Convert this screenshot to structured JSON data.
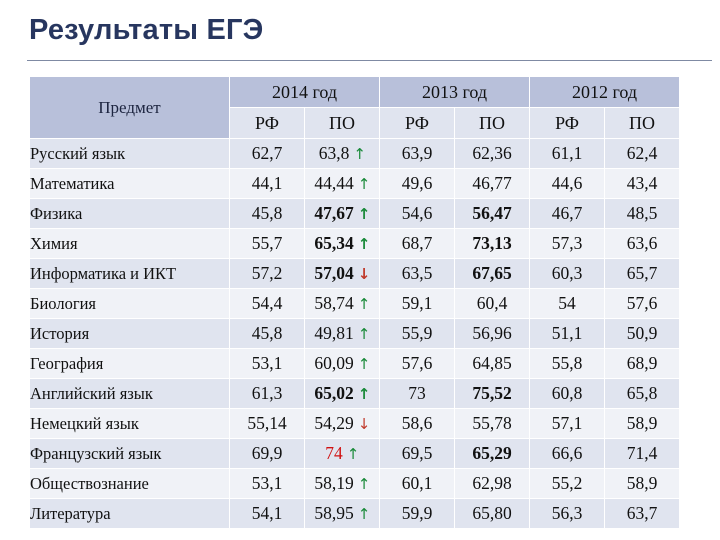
{
  "title": "Результаты ЕГЭ",
  "header": {
    "subject_label": "Предмет",
    "years": [
      "2014 год",
      "2013 год",
      "2012 год"
    ],
    "sub_labels": [
      "РФ",
      "ПО",
      "РФ",
      "ПО",
      "РФ",
      "ПО"
    ]
  },
  "colors": {
    "header": "#b8c0da",
    "row_alt_1": "#e0e4ef",
    "row_alt_2": "#f0f2f7",
    "arrow_up": "#1a8a3a",
    "arrow_down": "#c0392b",
    "title": "#27365f"
  },
  "icons": {
    "up": "arrow-up-icon",
    "down": "arrow-down-icon"
  },
  "rows": [
    {
      "subject": "Русский язык",
      "rf2014": "62,7",
      "po2014": "63,8",
      "trend": "up",
      "rf2013": "63,9",
      "po2013": "62,36",
      "rf2012": "61,1",
      "po2012": "62,4"
    },
    {
      "subject": "Математика",
      "rf2014": "44,1",
      "po2014": "44,44",
      "trend": "up",
      "rf2013": "49,6",
      "po2013": "46,77",
      "rf2012": "44,6",
      "po2012": "43,4"
    },
    {
      "subject": "Физика",
      "rf2014": "45,8",
      "po2014": "47,67",
      "trend": "up",
      "rf2013": "54,6",
      "po2013": "56,47",
      "rf2012": "46,7",
      "po2012": "48,5",
      "bold2014": true,
      "bold2013": true
    },
    {
      "subject": "Химия",
      "rf2014": "55,7",
      "po2014": "65,34",
      "trend": "up",
      "rf2013": "68,7",
      "po2013": "73,13",
      "rf2012": "57,3",
      "po2012": "63,6",
      "bold2014": true,
      "bold2013": true
    },
    {
      "subject": "Информатика и ИКТ",
      "rf2014": "57,2",
      "po2014": "57,04",
      "trend": "down",
      "rf2013": "63,5",
      "po2013": "67,65",
      "rf2012": "60,3",
      "po2012": "65,7",
      "bold2014": true,
      "bold2013": true
    },
    {
      "subject": "Биология",
      "rf2014": "54,4",
      "po2014": "58,74",
      "trend": "up",
      "rf2013": "59,1",
      "po2013": "60,4",
      "rf2012": "54",
      "po2012": "57,6"
    },
    {
      "subject": "История",
      "rf2014": "45,8",
      "po2014": "49,81",
      "trend": "up",
      "rf2013": "55,9",
      "po2013": "56,96",
      "rf2012": "51,1",
      "po2012": "50,9"
    },
    {
      "subject": "География",
      "rf2014": "53,1",
      "po2014": "60,09",
      "trend": "up",
      "rf2013": "57,6",
      "po2013": "64,85",
      "rf2012": "55,8",
      "po2012": "68,9"
    },
    {
      "subject": "Английский язык",
      "rf2014": "61,3",
      "po2014": "65,02",
      "trend": "up",
      "rf2013": "73",
      "po2013": "75,52",
      "rf2012": "60,8",
      "po2012": "65,8",
      "bold2014": true,
      "bold2013": true
    },
    {
      "subject": "Немецкий язык",
      "rf2014": "55,14",
      "po2014": "54,29",
      "trend": "down",
      "rf2013": "58,6",
      "po2013": "55,78",
      "rf2012": "57,1",
      "po2012": "58,9"
    },
    {
      "subject": "Французский язык",
      "rf2014": "69,9",
      "po2014": "74",
      "trend": "up",
      "rf2013": "69,5",
      "po2013": "65,29",
      "rf2012": "66,6",
      "po2012": "71,4",
      "red2014": true,
      "bold2013": true
    },
    {
      "subject": "Обществознание",
      "rf2014": "53,1",
      "po2014": "58,19",
      "trend": "up",
      "rf2013": "60,1",
      "po2013": "62,98",
      "rf2012": "55,2",
      "po2012": "58,9"
    },
    {
      "subject": "Литература",
      "rf2014": "54,1",
      "po2014": "58,95",
      "trend": "up",
      "rf2013": "59,9",
      "po2013": "65,80",
      "rf2012": "56,3",
      "po2012": "63,7"
    }
  ]
}
